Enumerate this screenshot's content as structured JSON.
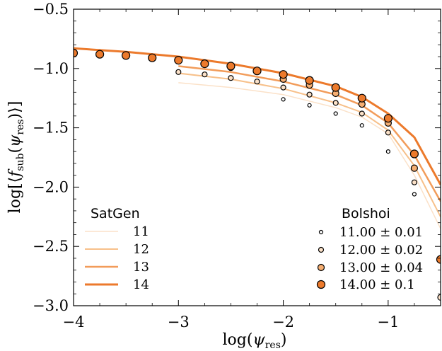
{
  "chart_data": {
    "type": "line",
    "xlabel": "log(ψres)",
    "ylabel": "log[⟨fsub(ψres)⟩]",
    "xlim": [
      -4,
      -0.5
    ],
    "ylim": [
      -3.0,
      -0.5
    ],
    "x_ticks": [
      -4,
      -3,
      -2,
      -1
    ],
    "x_tick_labels": [
      "−4",
      "−3",
      "−2",
      "−1"
    ],
    "y_ticks": [
      -3.0,
      -2.5,
      -2.0,
      -1.5,
      -1.0,
      -0.5
    ],
    "y_tick_labels": [
      "−3.0",
      "−2.5",
      "−2.0",
      "−1.5",
      "−1.0",
      "−0.5"
    ],
    "grid": false,
    "legends": [
      {
        "title": "SatGen",
        "placement": "lower-left"
      },
      {
        "title": "Bolshoi",
        "placement": "lower-right"
      }
    ],
    "line_series": [
      {
        "name": "11",
        "color": "#fbe1c8",
        "x": [
          -3.0,
          -2.5,
          -2.0,
          -1.5,
          -1.25,
          -1.0,
          -0.75,
          -0.5
        ],
        "y": [
          -1.12,
          -1.16,
          -1.22,
          -1.33,
          -1.41,
          -1.55,
          -1.9,
          -2.35
        ]
      },
      {
        "name": "12",
        "color": "#f7c08a",
        "x": [
          -3.0,
          -2.5,
          -2.0,
          -1.5,
          -1.25,
          -1.0,
          -0.75,
          -0.5
        ],
        "y": [
          -1.04,
          -1.09,
          -1.17,
          -1.29,
          -1.37,
          -1.52,
          -1.82,
          -2.25
        ]
      },
      {
        "name": "13",
        "color": "#f29c5a",
        "x": [
          -3.0,
          -2.5,
          -2.0,
          -1.5,
          -1.25,
          -1.0,
          -0.75,
          -0.5
        ],
        "y": [
          -0.98,
          -1.03,
          -1.11,
          -1.22,
          -1.31,
          -1.46,
          -1.73,
          -2.12
        ]
      },
      {
        "name": "14",
        "color": "#ec7a2c",
        "x": [
          -4.0,
          -3.5,
          -3.0,
          -2.5,
          -2.0,
          -1.5,
          -1.25,
          -1.0,
          -0.75,
          -0.5
        ],
        "y": [
          -0.83,
          -0.86,
          -0.9,
          -0.96,
          -1.04,
          -1.15,
          -1.24,
          -1.38,
          -1.58,
          -1.98
        ]
      }
    ],
    "scatter_series": [
      {
        "name": "11.00 ± 0.01",
        "color": "#ffffff",
        "size": 2.5,
        "x": [
          -2.0,
          -1.75,
          -1.5,
          -1.25,
          -1.0,
          -0.75
        ],
        "y": [
          -1.26,
          -1.31,
          -1.38,
          -1.48,
          -1.7,
          -2.06
        ]
      },
      {
        "name": "12.00 ± 0.02",
        "color": "#fbe1c8",
        "size": 3.5,
        "x": [
          -3.0,
          -2.75,
          -2.5,
          -2.25,
          -2.0,
          -1.75,
          -1.5,
          -1.25,
          -1.0,
          -0.75
        ],
        "y": [
          -1.03,
          -1.05,
          -1.08,
          -1.11,
          -1.16,
          -1.22,
          -1.29,
          -1.38,
          -1.54,
          -1.96
        ]
      },
      {
        "name": "13.00 ± 0.04",
        "color": "#f5ae72",
        "size": 4.5,
        "x": [
          -3.0,
          -2.75,
          -2.5,
          -2.25,
          -2.0,
          -1.75,
          -1.5,
          -1.25,
          -1.0,
          -0.75
        ],
        "y": [
          -0.93,
          -0.96,
          -0.99,
          -1.02,
          -1.09,
          -1.14,
          -1.21,
          -1.3,
          -1.46,
          -1.84
        ]
      },
      {
        "name": "14.00 ± 0.1",
        "color": "#ec7a2c",
        "size": 5.5,
        "x": [
          -4.0,
          -3.75,
          -3.5,
          -3.25,
          -3.0,
          -2.75,
          -2.5,
          -2.25,
          -2.0,
          -1.75,
          -1.5,
          -1.25,
          -1.0,
          -0.75,
          -0.5
        ],
        "y": [
          -0.87,
          -0.88,
          -0.89,
          -0.91,
          -0.93,
          -0.96,
          -0.98,
          -1.02,
          -1.05,
          -1.1,
          -1.16,
          -1.25,
          -1.42,
          -1.72,
          -2.61
        ]
      }
    ],
    "extra_points": [
      {
        "x": [
          -0.5
        ],
        "y": [
          -2.93
        ],
        "color": "#fbe1c8",
        "size": 4
      }
    ]
  }
}
